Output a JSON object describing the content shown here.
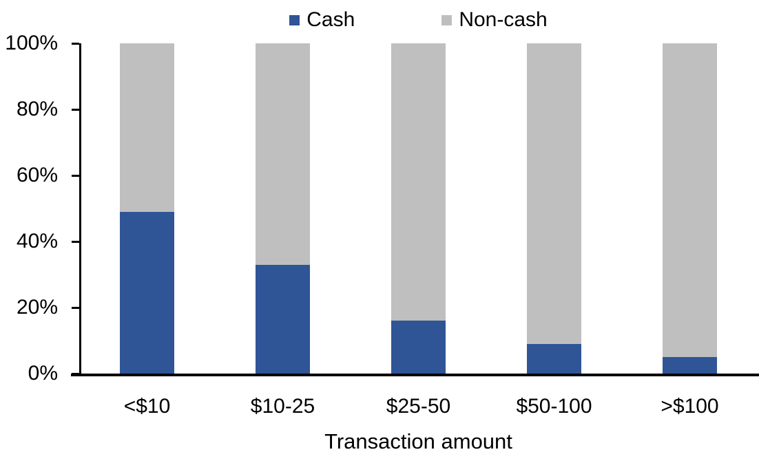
{
  "chart_data": {
    "type": "bar",
    "stacked": true,
    "title": "",
    "xlabel": "Transaction amount",
    "ylabel": "",
    "categories": [
      "<$10",
      "$10-25",
      "$25-50",
      "$50-100",
      ">$100"
    ],
    "series": [
      {
        "name": "Cash",
        "color": "#2F5597",
        "values": [
          49,
          33,
          16,
          9,
          5
        ]
      },
      {
        "name": "Non-cash",
        "color": "#BFBFBF",
        "values": [
          51,
          67,
          84,
          91,
          95
        ]
      }
    ],
    "ylim": [
      0,
      100
    ],
    "ytick_step": 20,
    "ytick_labels": [
      "0%",
      "20%",
      "40%",
      "60%",
      "80%",
      "100%"
    ],
    "legend_position": "top",
    "grid": false,
    "axis_color": "#000000",
    "background_color": "#FFFFFF"
  }
}
